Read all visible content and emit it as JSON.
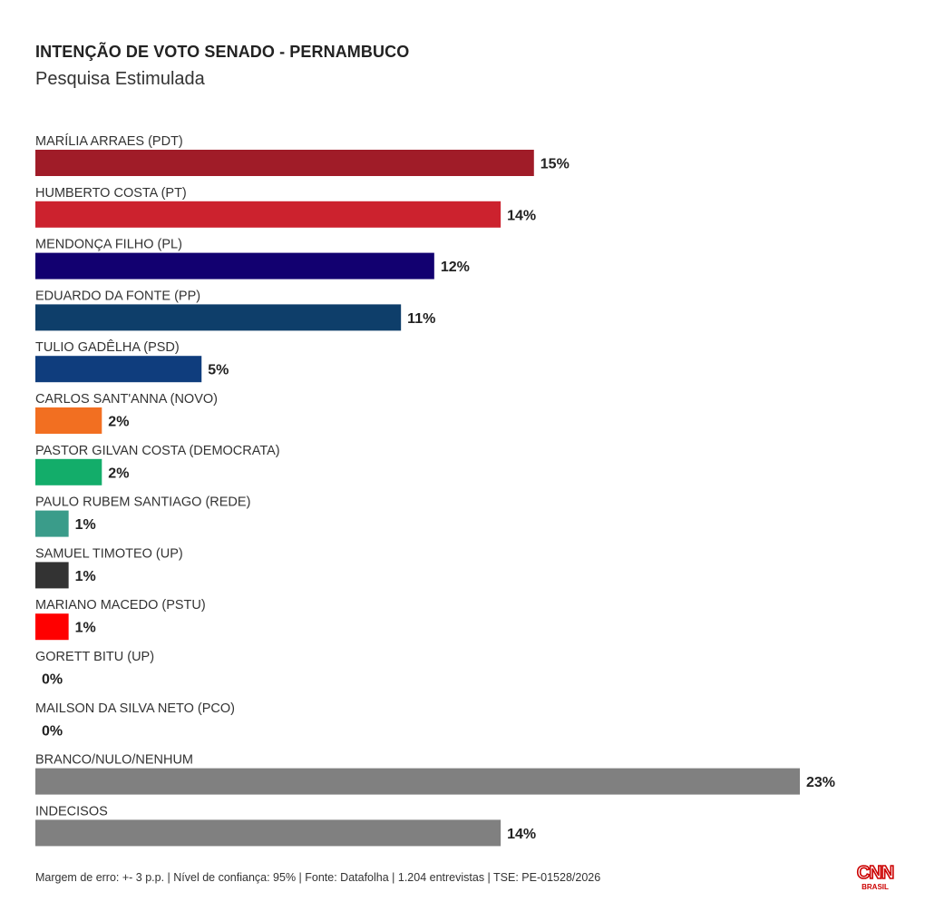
{
  "header": {
    "title": "INTENÇÃO DE VOTO SENADO - PERNAMBUCO",
    "subtitle": "Pesquisa Estimulada"
  },
  "footer": {
    "text": "Margem de erro: +- 3 p.p. | Nível de confiança: 95% | Fonte: Datafolha | 1.204 entrevistas | TSE: PE-01528/2026"
  },
  "logo": {
    "main": "CNN",
    "sub": "BRASIL",
    "color": "#cc0000"
  },
  "chart_data": {
    "type": "bar",
    "orientation": "horizontal",
    "title": "INTENÇÃO DE VOTO SENADO - PERNAMBUCO",
    "subtitle": "Pesquisa Estimulada",
    "value_suffix": "%",
    "xlim": [
      0,
      23
    ],
    "grid": false,
    "categories": [
      "MARÍLIA ARRAES (PDT)",
      "HUMBERTO COSTA (PT)",
      "MENDONÇA FILHO (PL)",
      "EDUARDO DA FONTE (PP)",
      "TULIO GADÊLHA (PSD)",
      "CARLOS SANT'ANNA (NOVO)",
      "PASTOR GILVAN COSTA (DEMOCRATA)",
      "PAULO RUBEM SANTIAGO (REDE)",
      "SAMUEL TIMOTEO (UP)",
      "MARIANO MACEDO (PSTU)",
      "GORETT BITU (UP)",
      "MAILSON DA SILVA NETO (PCO)",
      "BRANCO/NULO/NENHUM",
      "INDECISOS"
    ],
    "values": [
      15,
      14,
      12,
      11,
      5,
      2,
      2,
      1,
      1,
      1,
      0,
      0,
      23,
      14
    ],
    "colors": [
      "#a01c28",
      "#cc222e",
      "#120070",
      "#0e3e6a",
      "#0f3d7d",
      "#f26f21",
      "#13ad6a",
      "#3a9c8a",
      "#333333",
      "#ff0000",
      "#808080",
      "#808080",
      "#808080",
      "#808080"
    ]
  }
}
